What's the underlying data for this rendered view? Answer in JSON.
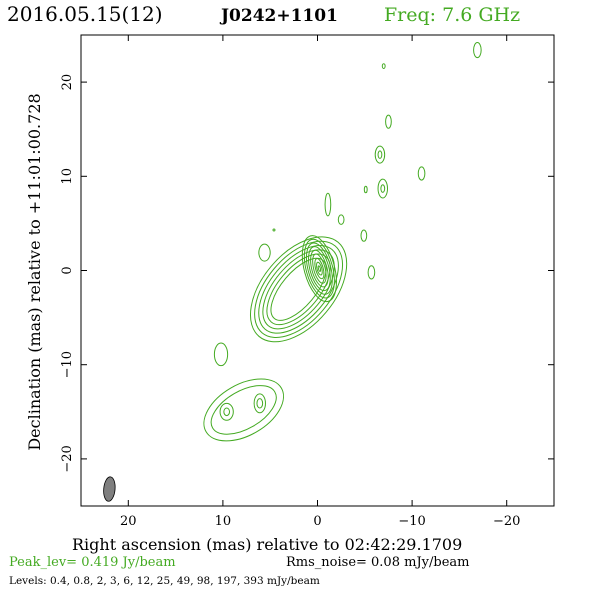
{
  "header": {
    "date": "2016.05.15(12)",
    "source": "J0242+1101",
    "freq": "Freq: 7.6 GHz"
  },
  "axes": {
    "xlabel": "Right ascension (mas) relative to 02:42:29.1709",
    "ylabel": "Declination (mas) relative to +11:01:00.728"
  },
  "footer": {
    "peak": "Peak_lev=  0.419 Jy/beam",
    "rms": "Rms_noise= 0.08 mJy/beam",
    "levels": "Levels: 0.4, 0.8,   2,   3,   6,  12,  25,  49,  98, 197, 393 mJy/beam"
  },
  "colors": {
    "contour": "#44aa22",
    "beam": "#7f7f7f",
    "text": "#000000",
    "frame": "#000000"
  },
  "chart_data": {
    "type": "contour",
    "xlim": [
      25,
      -25
    ],
    "ylim": [
      -25,
      25
    ],
    "x_ticks": [
      20,
      10,
      0,
      -10,
      -20
    ],
    "y_ticks": [
      20,
      10,
      0,
      -10,
      -20
    ],
    "x_tick_labels": [
      "20",
      "10",
      "0",
      "−10",
      "−20"
    ],
    "y_tick_labels": [
      "20",
      "10",
      "0",
      "−10",
      "−20"
    ],
    "peak_jy_per_beam": 0.419,
    "rms_noise_mjy_per_beam": 0.08,
    "levels_mjy_per_beam": [
      0.4,
      0.8,
      2,
      3,
      6,
      12,
      25,
      49,
      98,
      197,
      393
    ],
    "beam": {
      "ra": 22,
      "dec": -23.2,
      "major_mas": 2.6,
      "minor_mas": 1.2,
      "pa_deg": 5
    },
    "core": {
      "ra": 0,
      "dec": 0
    },
    "contour_nests": [
      {
        "label": "core",
        "ra": -0.2,
        "dec": 0.2,
        "scales": [
          [
            1.6,
            3.6
          ],
          [
            1.4,
            3.2
          ],
          [
            1.2,
            2.8
          ],
          [
            1.0,
            2.4
          ],
          [
            0.8,
            2.0
          ],
          [
            0.6,
            1.6
          ],
          [
            0.4,
            1.1
          ],
          [
            0.25,
            0.7
          ],
          [
            0.1,
            0.3
          ]
        ],
        "angle": -15
      },
      {
        "label": "inner-jet",
        "ra": 2.0,
        "dec": -2.0,
        "scales": [
          [
            6.5,
            3.8
          ],
          [
            6.0,
            3.4
          ],
          [
            5.5,
            3.0
          ],
          [
            5.0,
            2.6
          ],
          [
            4.5,
            2.2
          ],
          [
            4.0,
            1.8
          ]
        ],
        "angle": -50
      },
      {
        "label": "southern-knot",
        "ra": 7.8,
        "dec": -14.8,
        "scales": [
          [
            4.6,
            2.7
          ],
          [
            3.8,
            2.0
          ]
        ],
        "angle": -30
      },
      {
        "label": "southern-subknot-a",
        "ra": 9.6,
        "dec": -15.0,
        "scales": [
          [
            0.7,
            0.9
          ],
          [
            0.3,
            0.4
          ]
        ],
        "angle": 0
      },
      {
        "label": "southern-subknot-b",
        "ra": 6.1,
        "dec": -14.1,
        "scales": [
          [
            0.6,
            1.0
          ],
          [
            0.3,
            0.5
          ]
        ],
        "angle": 0
      },
      {
        "label": "south-blob",
        "ra": 10.2,
        "dec": -8.9,
        "scales": [
          [
            0.7,
            1.2
          ]
        ],
        "angle": 0
      },
      {
        "label": "west-west-knot",
        "ra": -6.6,
        "dec": 12.3,
        "scales": [
          [
            0.5,
            0.9
          ],
          [
            0.2,
            0.4
          ]
        ],
        "angle": 0
      },
      {
        "label": "west-knot",
        "ra": -6.9,
        "dec": 8.7,
        "scales": [
          [
            0.5,
            1.0
          ],
          [
            0.2,
            0.4
          ]
        ],
        "angle": 0
      },
      {
        "label": "north-west-feature",
        "ra": -16.9,
        "dec": 23.4,
        "scales": [
          [
            0.4,
            0.8
          ]
        ],
        "angle": 0
      }
    ],
    "isolated_blobs": [
      {
        "ra": -1.1,
        "dec": 7.0,
        "rx": 0.3,
        "ry": 1.2
      },
      {
        "ra": -2.5,
        "dec": 5.4,
        "rx": 0.3,
        "ry": 0.5
      },
      {
        "ra": 5.6,
        "dec": 1.9,
        "rx": 0.6,
        "ry": 0.9
      },
      {
        "ra": 4.6,
        "dec": 4.3,
        "rx": 0.1,
        "ry": 0.1
      },
      {
        "ra": -4.9,
        "dec": 3.7,
        "rx": 0.3,
        "ry": 0.6
      },
      {
        "ra": -5.7,
        "dec": -0.2,
        "rx": 0.35,
        "ry": 0.7
      },
      {
        "ra": -5.1,
        "dec": 8.6,
        "rx": 0.15,
        "ry": 0.35
      },
      {
        "ra": -7.5,
        "dec": 15.8,
        "rx": 0.3,
        "ry": 0.7
      },
      {
        "ra": -11.0,
        "dec": 10.3,
        "rx": 0.35,
        "ry": 0.7
      },
      {
        "ra": -7.0,
        "dec": 21.7,
        "rx": 0.15,
        "ry": 0.25
      }
    ]
  }
}
